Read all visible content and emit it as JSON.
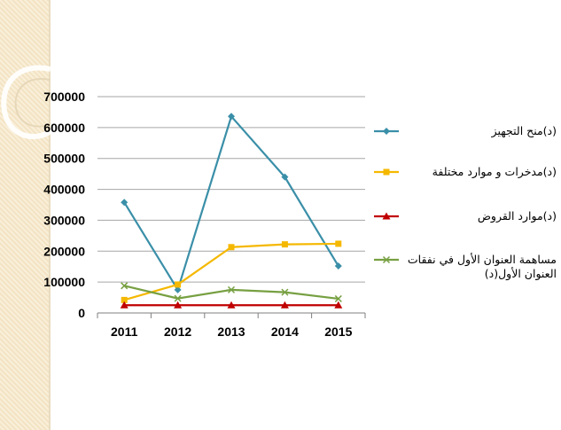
{
  "chart_data": {
    "type": "line",
    "categories": [
      "2011",
      "2012",
      "2013",
      "2014",
      "2015"
    ],
    "ylim": [
      0,
      700000
    ],
    "yticks": [
      "0",
      "100000",
      "200000",
      "300000",
      "400000",
      "500000",
      "600000",
      "700000"
    ],
    "grid": true,
    "legend": "right",
    "series": [
      {
        "name": "(د)منح التجهيز",
        "color": "#3A8FA8",
        "marker": "diamond",
        "values": [
          358000,
          75000,
          636000,
          440000,
          152000
        ]
      },
      {
        "name": "(د)مدخرات و موارد مختلفة",
        "color": "#F5B800",
        "marker": "square",
        "values": [
          42000,
          92000,
          213000,
          222000,
          224000
        ]
      },
      {
        "name": "(د)موارد القروض",
        "color": "#C00000",
        "marker": "triangle",
        "values": [
          25000,
          25000,
          25000,
          25000,
          25000
        ]
      },
      {
        "name": "مساهمة العنوان الأول في نفقات العنوان الأول(د)",
        "color": "#77A042",
        "marker": "x",
        "values": [
          88000,
          47000,
          75000,
          67000,
          46000
        ]
      }
    ]
  }
}
